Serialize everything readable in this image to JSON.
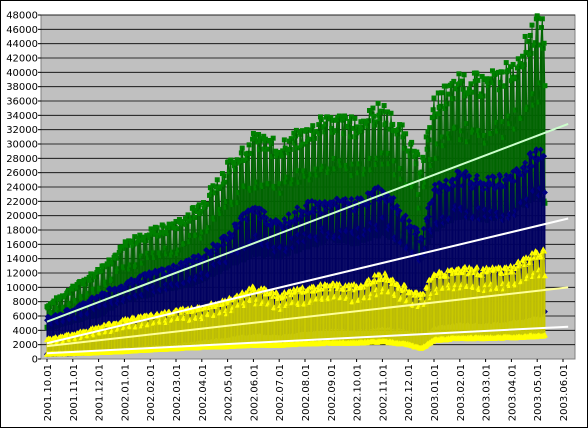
{
  "chart_data": {
    "type": "line",
    "x_tick_labels": [
      "2001.10.01",
      "2001.11.01",
      "2001.12.01",
      "2002.01.01",
      "2002.02.01",
      "2002.03.01",
      "2002.04.01",
      "2002.05.01",
      "2002.06.01",
      "2002.07.01",
      "2002.08.01",
      "2002.09.01",
      "2002.10.01",
      "2002.11.01",
      "2002.12.01",
      "2003.01.01",
      "2003.02.01",
      "2003.03.01",
      "2003.04.01",
      "2003.05.01",
      "2003.06.01"
    ],
    "y_tick_labels": [
      "0",
      "2000",
      "4000",
      "6000",
      "8000",
      "10000",
      "12000",
      "14000",
      "16000",
      "18000",
      "20000",
      "22000",
      "24000",
      "26000",
      "28000",
      "30000",
      "32000",
      "34000",
      "36000",
      "38000",
      "40000",
      "42000",
      "44000",
      "46000",
      "48000"
    ],
    "ylim": [
      0,
      48000
    ],
    "grid": "horizontal",
    "plot_background": "#c0c0c0",
    "series": [
      {
        "marker": "square",
        "color": "#008000",
        "high": [
          [
            0,
            7500
          ],
          [
            1,
            10000
          ],
          [
            2,
            12500
          ],
          [
            3,
            16000
          ],
          [
            4,
            18000
          ],
          [
            5,
            19000
          ],
          [
            6,
            22000
          ],
          [
            7,
            27000
          ],
          [
            8,
            31000
          ],
          [
            9,
            30000
          ],
          [
            10,
            32000
          ],
          [
            11,
            34000
          ],
          [
            12,
            33000
          ],
          [
            13,
            35500
          ],
          [
            14,
            31000
          ],
          [
            14.5,
            27000
          ],
          [
            15,
            36000
          ],
          [
            16,
            39500
          ],
          [
            17,
            39000
          ],
          [
            18,
            41000
          ],
          [
            19,
            47000
          ],
          [
            19.3,
            46500
          ]
        ],
        "low": [
          [
            0,
            4500
          ],
          [
            1,
            5500
          ],
          [
            2,
            6500
          ],
          [
            3,
            8500
          ],
          [
            4,
            9500
          ],
          [
            5,
            10500
          ],
          [
            6,
            11500
          ],
          [
            7,
            13500
          ],
          [
            8,
            15500
          ],
          [
            9,
            15000
          ],
          [
            10,
            16500
          ],
          [
            11,
            17500
          ],
          [
            12,
            17000
          ],
          [
            13,
            18500
          ],
          [
            14,
            16500
          ],
          [
            14.5,
            15000
          ],
          [
            15,
            19000
          ],
          [
            16,
            21000
          ],
          [
            17,
            20500
          ],
          [
            18,
            21500
          ],
          [
            19,
            24000
          ],
          [
            19.3,
            23000
          ]
        ]
      },
      {
        "marker": "diamond",
        "color": "#000080",
        "high": [
          [
            0,
            5800
          ],
          [
            1,
            7000
          ],
          [
            2,
            9000
          ],
          [
            3,
            10500
          ],
          [
            4,
            12000
          ],
          [
            5,
            13000
          ],
          [
            6,
            14500
          ],
          [
            7,
            17500
          ],
          [
            8,
            21500
          ],
          [
            9,
            19000
          ],
          [
            10,
            21500
          ],
          [
            11,
            22000
          ],
          [
            12,
            22000
          ],
          [
            13,
            24000
          ],
          [
            14,
            19500
          ],
          [
            14.5,
            17000
          ],
          [
            15,
            24000
          ],
          [
            16,
            26000
          ],
          [
            17,
            25000
          ],
          [
            18,
            25500
          ],
          [
            19,
            29500
          ],
          [
            19.3,
            30000
          ]
        ],
        "low": [
          [
            0,
            700
          ],
          [
            1,
            800
          ],
          [
            2,
            1000
          ],
          [
            3,
            2000
          ],
          [
            4,
            2300
          ],
          [
            5,
            2600
          ],
          [
            6,
            3000
          ],
          [
            7,
            3500
          ],
          [
            8,
            4000
          ],
          [
            9,
            3800
          ],
          [
            10,
            4300
          ],
          [
            11,
            4700
          ],
          [
            12,
            4500
          ],
          [
            13,
            5000
          ],
          [
            14,
            4500
          ],
          [
            14.5,
            3800
          ],
          [
            15,
            5000
          ],
          [
            16,
            5600
          ],
          [
            17,
            5500
          ],
          [
            18,
            5800
          ],
          [
            19,
            6500
          ],
          [
            19.3,
            6500
          ]
        ]
      },
      {
        "marker": "triangle",
        "color": "#ffff00",
        "high": [
          [
            0,
            2800
          ],
          [
            1,
            3500
          ],
          [
            2,
            4500
          ],
          [
            3,
            5500
          ],
          [
            4,
            6200
          ],
          [
            5,
            6800
          ],
          [
            6,
            7300
          ],
          [
            7,
            8300
          ],
          [
            8,
            10200
          ],
          [
            9,
            9000
          ],
          [
            10,
            10000
          ],
          [
            11,
            10500
          ],
          [
            12,
            10300
          ],
          [
            13,
            12000
          ],
          [
            14,
            9800
          ],
          [
            14.5,
            9000
          ],
          [
            15,
            12000
          ],
          [
            16,
            12800
          ],
          [
            17,
            12500
          ],
          [
            18,
            12800
          ],
          [
            19,
            15000
          ],
          [
            19.3,
            15000
          ]
        ],
        "low": [
          [
            0,
            700
          ],
          [
            1,
            800
          ],
          [
            2,
            900
          ],
          [
            3,
            1100
          ],
          [
            4,
            1300
          ],
          [
            5,
            1500
          ],
          [
            6,
            1700
          ],
          [
            7,
            1800
          ],
          [
            8,
            2000
          ],
          [
            9,
            2000
          ],
          [
            10,
            2200
          ],
          [
            11,
            2300
          ],
          [
            12,
            2300
          ],
          [
            13,
            2500
          ],
          [
            14,
            2100
          ],
          [
            14.5,
            1500
          ],
          [
            15,
            2700
          ],
          [
            16,
            3000
          ],
          [
            17,
            3000
          ],
          [
            18,
            3100
          ],
          [
            19,
            3300
          ],
          [
            19.3,
            3300
          ]
        ]
      }
    ],
    "trendlines": [
      {
        "color": "#ccffcc",
        "from": [
          0,
          5200
        ],
        "to": [
          20.2,
          32800
        ]
      },
      {
        "color": "#ffffff",
        "from": [
          0,
          2200
        ],
        "to": [
          20.2,
          19600
        ]
      },
      {
        "color": "#ffff99",
        "from": [
          0,
          1800
        ],
        "to": [
          20.2,
          10000
        ]
      },
      {
        "color": "#ffffff",
        "from": [
          0,
          800
        ],
        "to": [
          20.2,
          4500
        ]
      }
    ]
  }
}
